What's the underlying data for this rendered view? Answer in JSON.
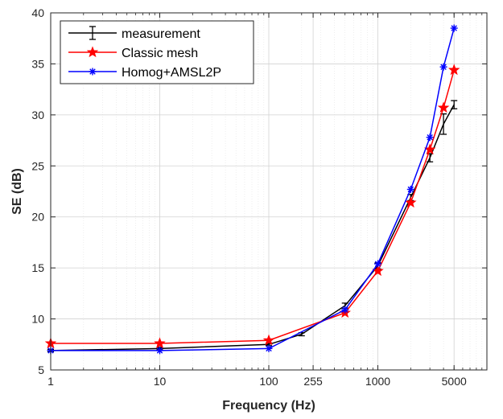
{
  "chart_data": {
    "type": "line",
    "title": "",
    "xlabel": "Frequency (Hz)",
    "ylabel": "SE (dB)",
    "xscale": "log",
    "xlim": [
      1,
      10000
    ],
    "ylim": [
      5,
      40
    ],
    "xticks": [
      1,
      10,
      100,
      255,
      1000,
      5000
    ],
    "xtick_labels": [
      "1",
      "10",
      "100",
      "255",
      "1000",
      "5000"
    ],
    "yticks": [
      5,
      10,
      15,
      20,
      25,
      30,
      35,
      40
    ],
    "ytick_labels": [
      "5",
      "10",
      "15",
      "20",
      "25",
      "30",
      "35",
      "40"
    ],
    "grid": true,
    "legend_position": "top-left",
    "series": [
      {
        "name": "measurement",
        "color": "#000000",
        "marker": "errorbar",
        "x": [
          1,
          10,
          100,
          200,
          500,
          1000,
          2000,
          3000,
          4000,
          5000
        ],
        "y": [
          6.9,
          7.1,
          7.5,
          8.5,
          11.3,
          15.2,
          21.9,
          25.8,
          29.1,
          31.0
        ],
        "err": [
          0,
          0,
          0,
          0.15,
          0.25,
          0.3,
          0.3,
          0.4,
          1.0,
          0.4
        ]
      },
      {
        "name": "Classic mesh",
        "color": "#ff0000",
        "marker": "star",
        "x": [
          1,
          10,
          100,
          500,
          1000,
          2000,
          3000,
          4000,
          5000
        ],
        "y": [
          7.6,
          7.6,
          7.9,
          10.6,
          14.7,
          21.4,
          26.6,
          30.7,
          34.4
        ]
      },
      {
        "name": "Homog+AMSL2P",
        "color": "#0000ff",
        "marker": "asterisk",
        "x": [
          1,
          10,
          100,
          500,
          1000,
          2000,
          3000,
          4000,
          5000
        ],
        "y": [
          6.9,
          6.9,
          7.1,
          10.9,
          15.4,
          22.7,
          27.8,
          34.7,
          38.5
        ]
      }
    ]
  }
}
